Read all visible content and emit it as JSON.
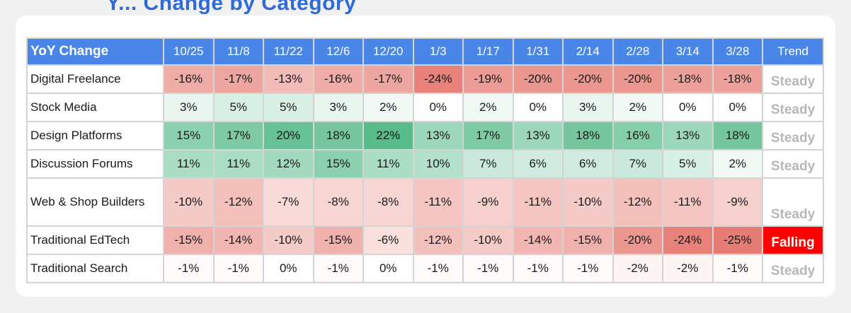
{
  "page": {
    "title_fragment": "Y... Change by Category"
  },
  "colors": {
    "header": "#4a86e8",
    "negative_strong": "#e67c73",
    "neutral": "#ffffff",
    "positive_strong": "#57bb8a",
    "trend_steady": "#b7b7b7",
    "trend_falling": "#ff0000"
  },
  "chart_data": {
    "type": "table",
    "title": "",
    "corner_label": "YoY Change",
    "trend_label": "Trend",
    "columns": [
      "10/25",
      "11/8",
      "11/22",
      "12/6",
      "12/20",
      "1/3",
      "1/17",
      "1/31",
      "2/14",
      "2/28",
      "3/14",
      "3/28"
    ],
    "rows": [
      {
        "category": "Digital Freelance",
        "values": [
          -16,
          -17,
          -13,
          -16,
          -17,
          -24,
          -19,
          -20,
          -20,
          -20,
          -18,
          -18
        ],
        "trend": "Steady"
      },
      {
        "category": "Stock Media",
        "values": [
          3,
          5,
          5,
          3,
          2,
          0,
          2,
          0,
          3,
          2,
          0,
          0
        ],
        "trend": "Steady"
      },
      {
        "category": "Design Platforms",
        "values": [
          15,
          17,
          20,
          18,
          22,
          13,
          17,
          13,
          18,
          16,
          13,
          18
        ],
        "trend": "Steady"
      },
      {
        "category": "Discussion Forums",
        "values": [
          11,
          11,
          12,
          15,
          11,
          10,
          7,
          6,
          6,
          7,
          5,
          2
        ],
        "trend": "Steady"
      },
      {
        "category": "Web & Shop Builders",
        "values": [
          -10,
          -12,
          -7,
          -8,
          -8,
          -11,
          -9,
          -11,
          -10,
          -12,
          -11,
          -9
        ],
        "trend": "Steady"
      },
      {
        "category": "Traditional EdTech",
        "values": [
          -15,
          -14,
          -10,
          -15,
          -6,
          -12,
          -10,
          -14,
          -15,
          -20,
          -24,
          -25
        ],
        "trend": "Falling"
      },
      {
        "category": "Traditional Search",
        "values": [
          -1,
          -1,
          0,
          -1,
          0,
          -1,
          -1,
          -1,
          -1,
          -2,
          -2,
          -1
        ],
        "trend": "Steady"
      }
    ],
    "unit": "%"
  }
}
